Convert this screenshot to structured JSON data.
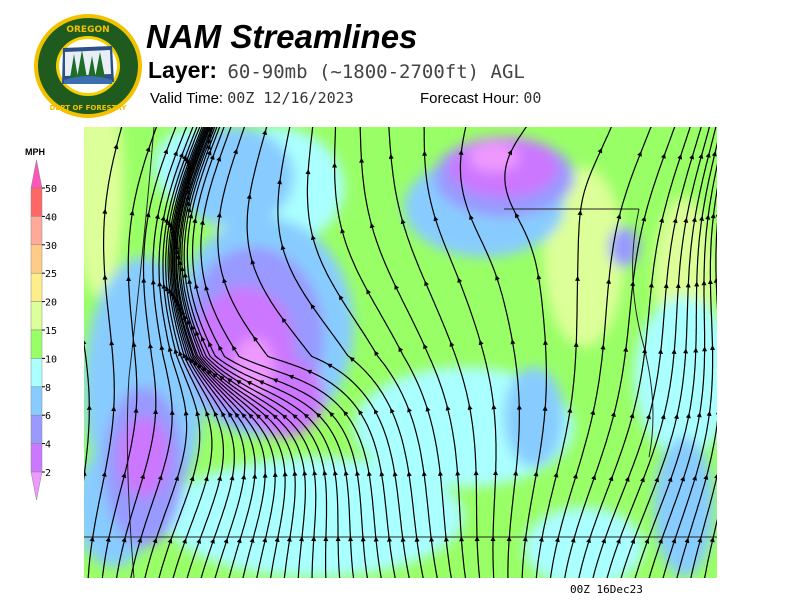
{
  "logo": {
    "text_top": "OREGON",
    "text_ring": "DEPARTMENT OF FORESTRY"
  },
  "header": {
    "title": "NAM Streamlines",
    "layer_label": "Layer:",
    "layer_value": "60-90mb (~1800-2700ft) AGL",
    "valid_label": "Valid Time:",
    "valid_value": "00Z 12/16/2023",
    "forecast_label": "Forecast Hour:",
    "forecast_value": "00"
  },
  "legend": {
    "unit": "MPH",
    "ticks": [
      "50",
      "40",
      "30",
      "25",
      "20",
      "15",
      "10",
      "8",
      "6",
      "4",
      "2"
    ],
    "colors": {
      "above_50": "#ff55bb",
      "40-50": "#ff6666",
      "30-40": "#ffaa99",
      "25-30": "#ffcc88",
      "20-25": "#ffee88",
      "15-20": "#ddff99",
      "10-15": "#99ff66",
      "8-10": "#aaffff",
      "6-8": "#88ccff",
      "4-6": "#9999ff",
      "2-4": "#cc77ff",
      "below_2": "#ee99ff"
    }
  },
  "map": {
    "stamp": "00Z 16Dec23"
  }
}
